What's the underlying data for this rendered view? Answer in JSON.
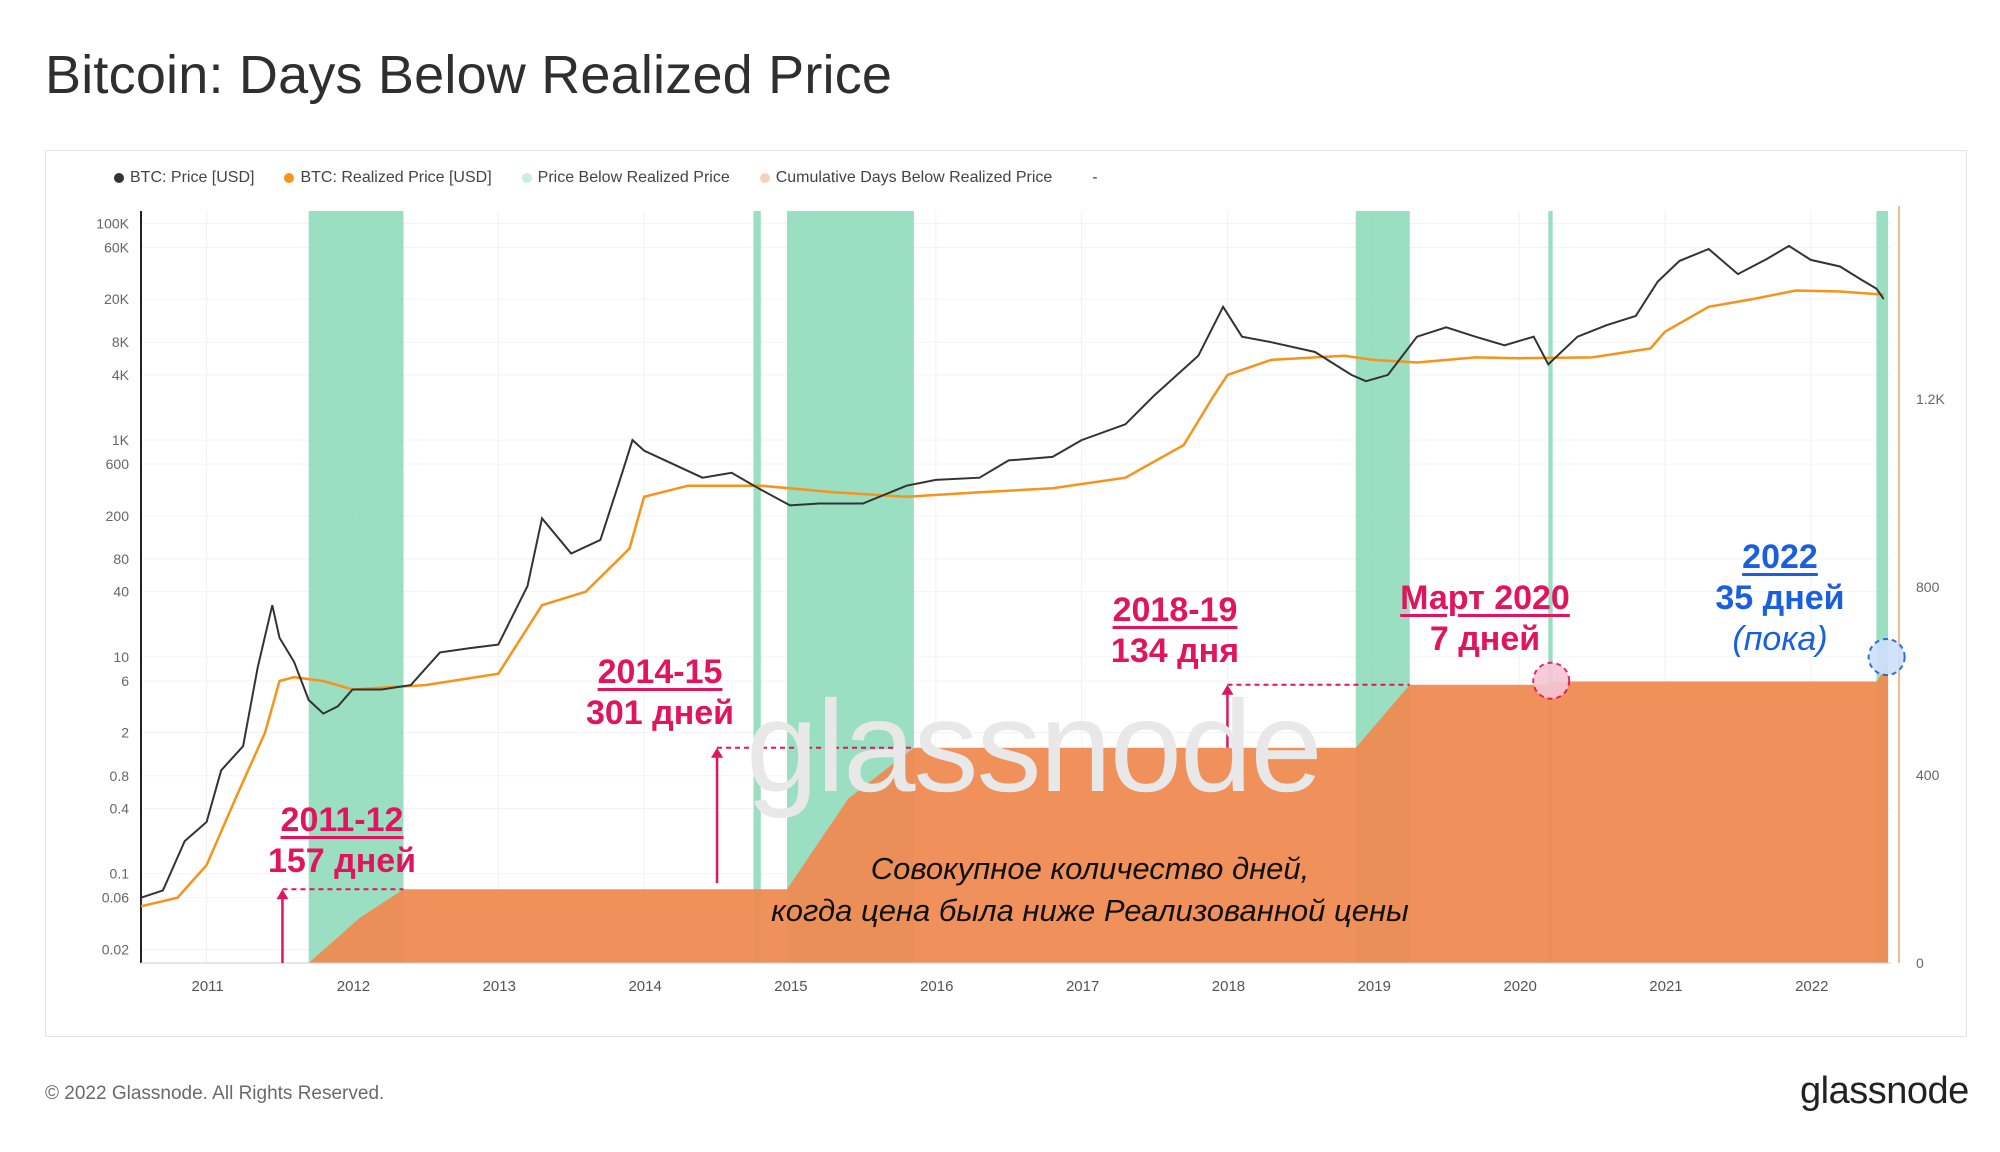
{
  "title": "Bitcoin: Days Below Realized Price",
  "legend": [
    {
      "label": "BTC: Price [USD]",
      "color": "#333333"
    },
    {
      "label": "BTC: Realized Price [USD]",
      "color": "#f7931a"
    },
    {
      "label": "Price Below Realized Price",
      "color": "#c9efe1"
    },
    {
      "label": "Cumulative Days Below Realized Price",
      "color": "#f6d2bd"
    },
    {
      "label": "-",
      "color": ""
    }
  ],
  "watermark": "glassnode",
  "annotations": {
    "a2011": {
      "line1": "2011-12",
      "line2": "157 дней"
    },
    "a2014": {
      "line1": "2014-15",
      "line2": "301 дней"
    },
    "a2018": {
      "line1": "2018-19",
      "line2": "134  дня"
    },
    "a2020": {
      "line1": "Март 2020",
      "line2": "7 дней"
    },
    "a2022": {
      "line1": "2022",
      "line2": "35 дней",
      "line3": "(пока)"
    }
  },
  "caption": {
    "line1": "Совокупное количество дней,",
    "line2": "когда цена была ниже Реализованной цены"
  },
  "footer": {
    "copyright": "© 2022 Glassnode. All Rights Reserved.",
    "logo": "glassnode"
  },
  "chart_data": {
    "type": "line",
    "title": "Bitcoin: Days Below Realized Price",
    "x_ticks": [
      "2011",
      "2012",
      "2013",
      "2014",
      "2015",
      "2016",
      "2017",
      "2018",
      "2019",
      "2020",
      "2021",
      "2022"
    ],
    "y_left": {
      "scale": "log",
      "ticks": [
        "100K",
        "60K",
        "20K",
        "8K",
        "4K",
        "1K",
        "600",
        "200",
        "80",
        "40",
        "10",
        "6",
        "2",
        "0.8",
        "0.4",
        "0.1",
        "0.06",
        "0.02"
      ]
    },
    "y_right": {
      "scale": "linear",
      "ticks": [
        "1.2K",
        "800",
        "400",
        "0"
      ],
      "range": [
        0,
        1600
      ]
    },
    "series": [
      {
        "name": "BTC: Price [USD]",
        "color": "#333333",
        "x": [
          2010.55,
          2010.7,
          2010.85,
          2011.0,
          2011.1,
          2011.25,
          2011.35,
          2011.45,
          2011.5,
          2011.6,
          2011.7,
          2011.8,
          2011.9,
          2012.0,
          2012.2,
          2012.4,
          2012.6,
          2012.8,
          2013.0,
          2013.2,
          2013.3,
          2013.5,
          2013.7,
          2013.85,
          2013.92,
          2014.0,
          2014.2,
          2014.4,
          2014.6,
          2014.8,
          2015.0,
          2015.2,
          2015.5,
          2015.8,
          2016.0,
          2016.3,
          2016.5,
          2016.8,
          2017.0,
          2017.3,
          2017.5,
          2017.8,
          2017.97,
          2018.1,
          2018.3,
          2018.6,
          2018.85,
          2018.95,
          2019.1,
          2019.3,
          2019.5,
          2019.7,
          2019.9,
          2020.1,
          2020.2,
          2020.4,
          2020.6,
          2020.8,
          2020.95,
          2021.1,
          2021.3,
          2021.5,
          2021.7,
          2021.85,
          2022.0,
          2022.2,
          2022.35,
          2022.45,
          2022.5
        ],
        "y": [
          0.06,
          0.07,
          0.2,
          0.3,
          0.9,
          1.5,
          8,
          30,
          15,
          9,
          4,
          3,
          3.5,
          5,
          5,
          5.5,
          11,
          12,
          13,
          45,
          190,
          90,
          120,
          500,
          1000,
          800,
          600,
          450,
          500,
          350,
          250,
          260,
          260,
          380,
          430,
          450,
          650,
          700,
          1000,
          1400,
          2600,
          6000,
          17000,
          9000,
          8000,
          6500,
          4000,
          3500,
          4000,
          9000,
          11000,
          9000,
          7500,
          9000,
          5000,
          9000,
          11500,
          14000,
          29000,
          45000,
          58000,
          34000,
          47000,
          62000,
          46000,
          40000,
          30000,
          25000,
          20000
        ]
      },
      {
        "name": "BTC: Realized Price [USD]",
        "color": "#f7931a",
        "x": [
          2010.55,
          2010.8,
          2011.0,
          2011.2,
          2011.4,
          2011.5,
          2011.6,
          2011.8,
          2012.0,
          2012.5,
          2013.0,
          2013.3,
          2013.6,
          2013.9,
          2014.0,
          2014.3,
          2014.8,
          2015.3,
          2015.8,
          2016.3,
          2016.8,
          2017.3,
          2017.7,
          2017.9,
          2018.0,
          2018.3,
          2018.8,
          2019.0,
          2019.3,
          2019.7,
          2020.0,
          2020.5,
          2020.9,
          2021.0,
          2021.3,
          2021.6,
          2021.9,
          2022.2,
          2022.5
        ],
        "y": [
          0.05,
          0.06,
          0.12,
          0.5,
          2,
          6,
          6.5,
          6,
          5,
          5.5,
          7,
          30,
          40,
          100,
          300,
          380,
          380,
          330,
          300,
          330,
          360,
          450,
          900,
          2500,
          4000,
          5500,
          6000,
          5500,
          5200,
          5800,
          5700,
          5800,
          7000,
          10000,
          17000,
          20000,
          24000,
          23500,
          22000
        ]
      },
      {
        "name": "Cumulative Days Below Realized Price",
        "color": "#f08a4b",
        "x": [
          2010.55,
          2011.7,
          2012.05,
          2012.35,
          2014.98,
          2015.4,
          2015.85,
          2018.88,
          2019.25,
          2020.2,
          2020.23,
          2022.45,
          2022.53
        ],
        "y": [
          0,
          0,
          96,
          157,
          157,
          350,
          458,
          458,
          592,
          592,
          599,
          599,
          634
        ]
      }
    ],
    "below_realized_periods": [
      [
        2011.7,
        2012.35
      ],
      [
        2014.75,
        2014.8
      ],
      [
        2014.98,
        2015.85
      ],
      [
        2018.88,
        2019.25
      ],
      [
        2020.2,
        2020.23
      ],
      [
        2022.45,
        2022.53
      ]
    ],
    "annotations": [
      "2011-12 157 дней",
      "2014-15 301 дней",
      "2018-19 134  дня",
      "Март 2020 7 дней",
      "2022 35 дней (пока)"
    ]
  }
}
